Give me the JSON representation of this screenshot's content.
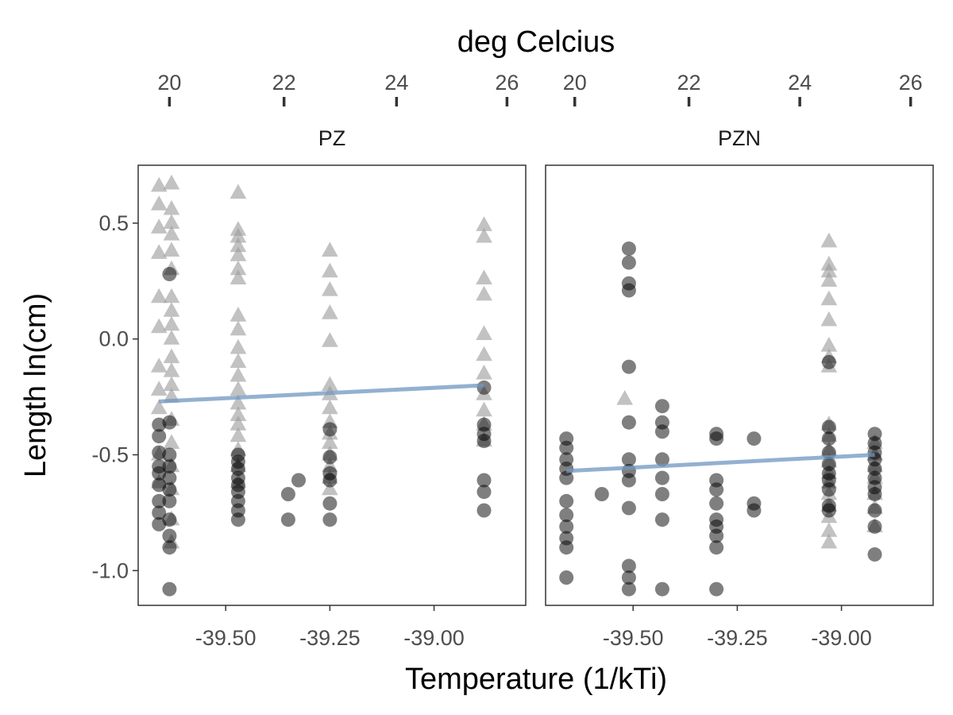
{
  "chart_data": {
    "type": "scatter",
    "top_axis_title": "deg Celcius",
    "xlabel": "Temperature (1/kTi)",
    "ylabel": "Length ln(cm)",
    "ylim": [
      -1.15,
      0.75
    ],
    "yticks": [
      -1.0,
      -0.5,
      0.0,
      0.5
    ],
    "ytick_labels": [
      "-1.0",
      "-0.5",
      "0.0",
      "0.5"
    ],
    "grid": false,
    "colors": {
      "point": "#000000",
      "fit_line": "#6f96c2",
      "frame": "#333333",
      "text": "#4d4d4d"
    },
    "panels": [
      {
        "strip_label": "PZ",
        "xlim": [
          -39.71,
          -38.78
        ],
        "xticks": [
          -39.5,
          -39.25,
          -39.0
        ],
        "xtick_labels": [
          "-39.50",
          "-39.25",
          "-39.00"
        ],
        "top_ticks": [
          20,
          22,
          24,
          26
        ],
        "top_tick_labels": [
          "20",
          "22",
          "24",
          "26"
        ],
        "top_tick_x": [
          -39.635,
          -39.36,
          -39.09,
          -38.825
        ],
        "fit_line": {
          "x": [
            -39.66,
            -38.88
          ],
          "y": [
            -0.27,
            -0.2
          ]
        },
        "triangles": [
          {
            "x": -39.66,
            "y": [
              0.66,
              0.58,
              0.48,
              0.37,
              0.18,
              0.05,
              -0.12,
              -0.22,
              -0.3,
              -0.5,
              -0.62
            ]
          },
          {
            "x": -39.63,
            "y": [
              0.67,
              0.56,
              0.5,
              0.45,
              0.38,
              0.3,
              0.18,
              0.12,
              0.06,
              0.0,
              -0.08,
              -0.14,
              -0.2,
              -0.25,
              -0.35,
              -0.45,
              -0.55,
              -0.65,
              -0.78,
              -0.88
            ]
          },
          {
            "x": -39.47,
            "y": [
              0.63,
              0.47,
              0.44,
              0.4,
              0.36,
              0.3,
              0.26,
              0.1,
              0.04,
              -0.04,
              -0.1,
              -0.16,
              -0.22,
              -0.28,
              -0.33,
              -0.37,
              -0.42,
              -0.48,
              -0.55,
              -0.62
            ]
          },
          {
            "x": -39.25,
            "y": [
              0.38,
              0.29,
              0.21,
              0.11,
              -0.01,
              -0.2,
              -0.24,
              -0.3,
              -0.36,
              -0.41,
              -0.45,
              -0.5,
              -0.55,
              -0.6,
              -0.65
            ]
          },
          {
            "x": -38.88,
            "y": [
              0.49,
              0.44,
              0.26,
              0.19,
              0.02,
              -0.07,
              -0.15,
              -0.24,
              -0.31,
              -0.37,
              -0.44
            ]
          }
        ],
        "circles": [
          {
            "x": -39.66,
            "y": [
              -0.37,
              -0.42,
              -0.49,
              -0.55,
              -0.58,
              -0.63,
              -0.7,
              -0.75,
              -0.8
            ]
          },
          {
            "x": -39.635,
            "y": [
              0.28,
              -0.36,
              -0.5,
              -0.55,
              -0.6,
              -0.65,
              -0.7,
              -0.78,
              -0.85,
              -0.9,
              -1.08
            ]
          },
          {
            "x": -39.47,
            "y": [
              -0.5,
              -0.53,
              -0.56,
              -0.6,
              -0.63,
              -0.66,
              -0.7,
              -0.74,
              -0.78
            ]
          },
          {
            "x": -39.35,
            "y": [
              -0.67,
              -0.78
            ]
          },
          {
            "x": -39.325,
            "y": [
              -0.61
            ]
          },
          {
            "x": -39.25,
            "y": [
              -0.39,
              -0.51,
              -0.58,
              -0.61,
              -0.71,
              -0.78
            ]
          },
          {
            "x": -38.88,
            "y": [
              -0.21,
              -0.37,
              -0.41,
              -0.44,
              -0.61,
              -0.66,
              -0.74
            ]
          }
        ]
      },
      {
        "strip_label": "PZN",
        "xlim": [
          -39.71,
          -38.78
        ],
        "xticks": [
          -39.5,
          -39.25,
          -39.0
        ],
        "xtick_labels": [
          "-39.50",
          "-39.25",
          "-39.00"
        ],
        "top_ticks": [
          20,
          22,
          24,
          26
        ],
        "top_tick_labels": [
          "20",
          "22",
          "24",
          "26"
        ],
        "top_tick_x": [
          -39.64,
          -39.366,
          -39.1,
          -38.834
        ],
        "fit_line": {
          "x": [
            -39.66,
            -38.92
          ],
          "y": [
            -0.57,
            -0.5
          ]
        },
        "triangles": [
          {
            "x": -39.52,
            "y": [
              -0.26
            ]
          },
          {
            "x": -39.03,
            "y": [
              0.42,
              0.32,
              0.29,
              0.25,
              0.17,
              0.08,
              -0.03,
              -0.08,
              -0.12,
              -0.37,
              -0.42,
              -0.48,
              -0.53,
              -0.58,
              -0.62,
              -0.67,
              -0.72,
              -0.77,
              -0.83,
              -0.88
            ]
          },
          {
            "x": -38.92,
            "y": [
              -0.45,
              -0.5,
              -0.55,
              -0.6,
              -0.67,
              -0.73,
              -0.81
            ]
          }
        ],
        "circles": [
          {
            "x": -39.66,
            "y": [
              -0.43,
              -0.47,
              -0.52,
              -0.56,
              -0.6,
              -0.7,
              -0.76,
              -0.81,
              -0.86,
              -0.9,
              -1.03
            ]
          },
          {
            "x": -39.575,
            "y": [
              -0.67
            ]
          },
          {
            "x": -39.51,
            "y": [
              0.39,
              0.33,
              0.24,
              0.21,
              -0.12,
              -0.36,
              -0.52,
              -0.57,
              -0.61,
              -0.73,
              -0.98,
              -1.03,
              -1.08
            ]
          },
          {
            "x": -39.43,
            "y": [
              -0.29,
              -0.36,
              -0.4,
              -0.52,
              -0.6,
              -0.67,
              -0.78,
              -1.08
            ]
          },
          {
            "x": -39.3,
            "y": [
              -0.41,
              -0.43,
              -0.61,
              -0.65,
              -0.71,
              -0.78,
              -0.81,
              -0.85,
              -0.9,
              -1.08
            ]
          },
          {
            "x": -39.21,
            "y": [
              -0.43,
              -0.71,
              -0.74
            ]
          },
          {
            "x": -39.03,
            "y": [
              -0.1,
              -0.38,
              -0.43,
              -0.49,
              -0.54,
              -0.58,
              -0.61,
              -0.65,
              -0.72,
              -0.74
            ]
          },
          {
            "x": -38.92,
            "y": [
              -0.41,
              -0.45,
              -0.49,
              -0.52,
              -0.56,
              -0.6,
              -0.64,
              -0.67,
              -0.74,
              -0.81,
              -0.93
            ]
          }
        ]
      }
    ]
  }
}
